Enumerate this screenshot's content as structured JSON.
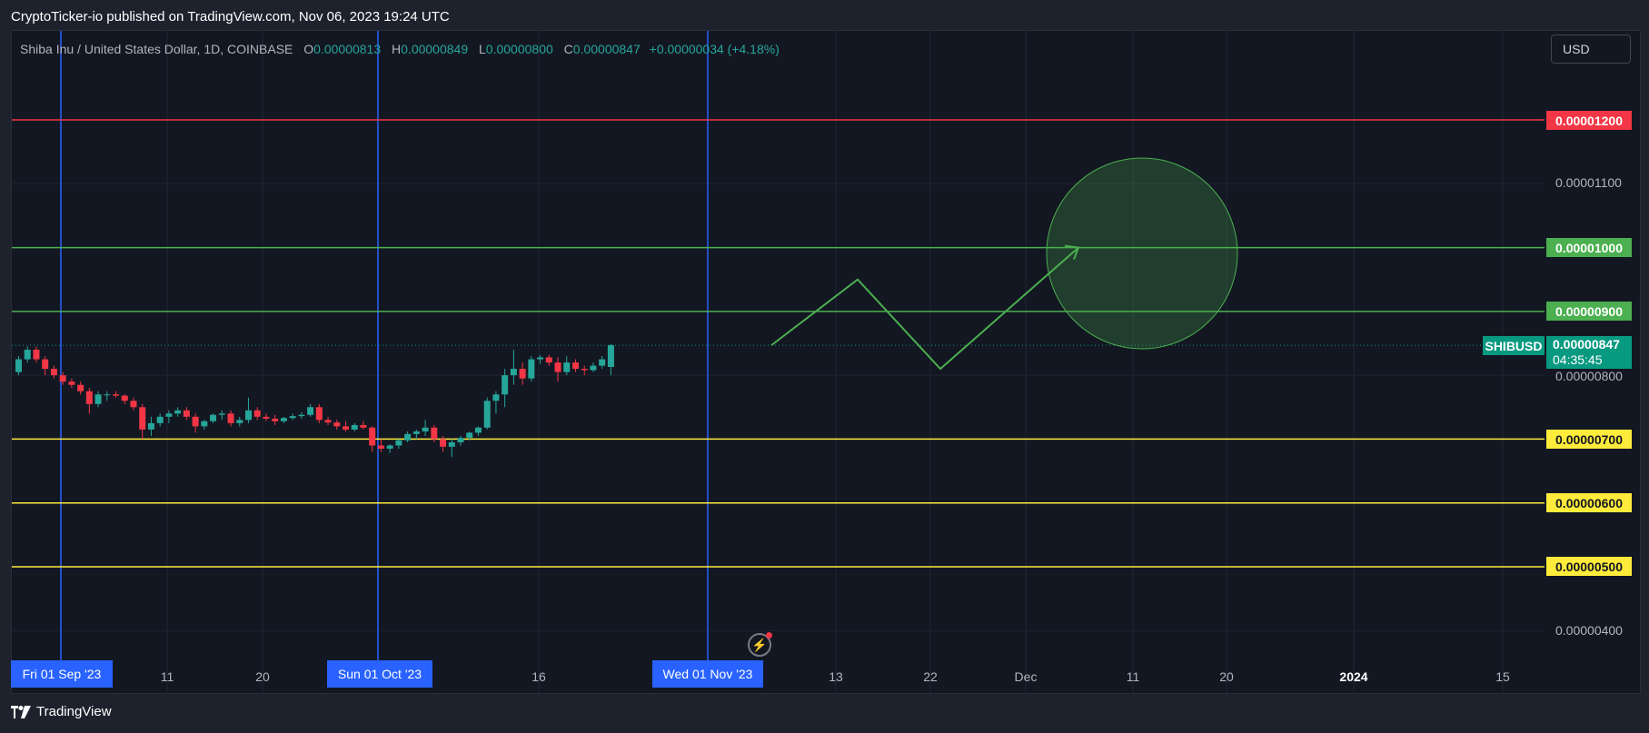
{
  "header": {
    "published_text": "CryptoTicker-io published on TradingView.com, Nov 06, 2023 19:24 UTC"
  },
  "legend": {
    "symbol_text": "Shiba Inu / United States Dollar, 1D, COINBASE",
    "open_key": "O",
    "open_value": "0.00000813",
    "high_key": "H",
    "high_value": "0.00000849",
    "low_key": "L",
    "low_value": "0.00000800",
    "close_key": "C",
    "close_value": "0.00000847",
    "change_value": "+0.00000034 (+4.18%)"
  },
  "currency_button": {
    "label": "USD"
  },
  "price_axis": {
    "plain_labels": [
      "0.00001100",
      "0.00000800",
      "0.00000400"
    ],
    "colored_tags": [
      {
        "label": "0.00001200",
        "color": "#f23645",
        "text_color": "#ffffff"
      },
      {
        "label": "0.00001000",
        "color": "#4caf50",
        "text_color": "#ffffff"
      },
      {
        "label": "0.00000900",
        "color": "#4caf50",
        "text_color": "#ffffff"
      },
      {
        "label": "0.00000700",
        "color": "#ffeb3b",
        "text_color": "#131722"
      },
      {
        "label": "0.00000600",
        "color": "#ffeb3b",
        "text_color": "#131722"
      },
      {
        "label": "0.00000500",
        "color": "#ffeb3b",
        "text_color": "#131722"
      }
    ],
    "symbol_tag": "SHIBUSD",
    "last_price": "0.00000847",
    "countdown": "04:35:45"
  },
  "time_axis": {
    "labels": [
      "11",
      "20",
      "16",
      "13",
      "22",
      "Dec",
      "11",
      "20",
      "2024",
      "15"
    ],
    "date_badges": [
      "Fri 01 Sep '23",
      "Sun 01 Oct '23",
      "Wed 01 Nov '23"
    ]
  },
  "footer": {
    "brand": "TradingView"
  },
  "colors": {
    "background": "#131722",
    "up_candle": "#26a69a",
    "down_candle": "#f23645",
    "vertical_marker": "#2962ff",
    "projection": "#4caf50"
  },
  "chart_data": {
    "type": "candlestick",
    "title": "Shiba Inu / United States Dollar, 1D, COINBASE",
    "ylim": [
      3.5e-06,
      1.3e-05
    ],
    "price_levels": [
      1.2e-05,
      1e-05,
      9e-06,
      7e-06,
      6e-06,
      5e-06
    ],
    "candles": [
      [
        8.05e-06,
        8.3e-06,
        8e-06,
        8.25e-06
      ],
      [
        8.25e-06,
        8.45e-06,
        8.2e-06,
        8.4e-06
      ],
      [
        8.4e-06,
        8.45e-06,
        8.2e-06,
        8.25e-06
      ],
      [
        8.25e-06,
        8.3e-06,
        8e-06,
        8.1e-06
      ],
      [
        8.1e-06,
        8.15e-06,
        7.95e-06,
        8e-06
      ],
      [
        8e-06,
        8.05e-06,
        7.85e-06,
        7.9e-06
      ],
      [
        7.9e-06,
        7.95e-06,
        7.8e-06,
        7.85e-06
      ],
      [
        7.85e-06,
        7.9e-06,
        7.7e-06,
        7.75e-06
      ],
      [
        7.75e-06,
        7.8e-06,
        7.4e-06,
        7.55e-06
      ],
      [
        7.55e-06,
        7.75e-06,
        7.5e-06,
        7.7e-06
      ],
      [
        7.7e-06,
        7.75e-06,
        7.6e-06,
        7.7e-06
      ],
      [
        7.7e-06,
        7.75e-06,
        7.65e-06,
        7.68e-06
      ],
      [
        7.68e-06,
        7.7e-06,
        7.55e-06,
        7.6e-06
      ],
      [
        7.6e-06,
        7.65e-06,
        7.45e-06,
        7.5e-06
      ],
      [
        7.5e-06,
        7.55e-06,
        7e-06,
        7.15e-06
      ],
      [
        7.15e-06,
        7.35e-06,
        7.05e-06,
        7.25e-06
      ],
      [
        7.25e-06,
        7.4e-06,
        7.2e-06,
        7.35e-06
      ],
      [
        7.35e-06,
        7.45e-06,
        7.25e-06,
        7.4e-06
      ],
      [
        7.4e-06,
        7.5e-06,
        7.35e-06,
        7.45e-06
      ],
      [
        7.45e-06,
        7.5e-06,
        7.3e-06,
        7.35e-06
      ],
      [
        7.35e-06,
        7.4e-06,
        7.1e-06,
        7.2e-06
      ],
      [
        7.2e-06,
        7.3e-06,
        7.15e-06,
        7.28e-06
      ],
      [
        7.28e-06,
        7.4e-06,
        7.25e-06,
        7.38e-06
      ],
      [
        7.38e-06,
        7.45e-06,
        7.3e-06,
        7.4e-06
      ],
      [
        7.4e-06,
        7.45e-06,
        7.2e-06,
        7.25e-06
      ],
      [
        7.25e-06,
        7.35e-06,
        7.2e-06,
        7.3e-06
      ],
      [
        7.3e-06,
        7.65e-06,
        7.25e-06,
        7.45e-06
      ],
      [
        7.45e-06,
        7.5e-06,
        7.3e-06,
        7.35e-06
      ],
      [
        7.35e-06,
        7.4e-06,
        7.28e-06,
        7.32e-06
      ],
      [
        7.32e-06,
        7.38e-06,
        7.22e-06,
        7.28e-06
      ],
      [
        7.28e-06,
        7.35e-06,
        7.25e-06,
        7.33e-06
      ],
      [
        7.33e-06,
        7.4e-06,
        7.3e-06,
        7.36e-06
      ],
      [
        7.36e-06,
        7.42e-06,
        7.32e-06,
        7.38e-06
      ],
      [
        7.38e-06,
        7.55e-06,
        7.35e-06,
        7.5e-06
      ],
      [
        7.5e-06,
        7.55e-06,
        7.25e-06,
        7.3e-06
      ],
      [
        7.3e-06,
        7.35e-06,
        7.22e-06,
        7.26e-06
      ],
      [
        7.26e-06,
        7.3e-06,
        7.15e-06,
        7.2e-06
      ],
      [
        7.2e-06,
        7.28e-06,
        7.12e-06,
        7.15e-06
      ],
      [
        7.15e-06,
        7.25e-06,
        7.12e-06,
        7.22e-06
      ],
      [
        7.22e-06,
        7.28e-06,
        7.15e-06,
        7.18e-06
      ],
      [
        7.18e-06,
        7.2e-06,
        6.8e-06,
        6.9e-06
      ],
      [
        6.9e-06,
        7e-06,
        6.8e-06,
        6.85e-06
      ],
      [
        6.85e-06,
        6.92e-06,
        6.78e-06,
        6.9e-06
      ],
      [
        6.9e-06,
        7e-06,
        6.85e-06,
        6.98e-06
      ],
      [
        6.98e-06,
        7.12e-06,
        6.95e-06,
        7.08e-06
      ],
      [
        7.08e-06,
        7.15e-06,
        7e-06,
        7.12e-06
      ],
      [
        7.12e-06,
        7.3e-06,
        7.05e-06,
        7.18e-06
      ],
      [
        7.18e-06,
        7.22e-06,
        6.95e-06,
        7e-06
      ],
      [
        7e-06,
        7.05e-06,
        6.8e-06,
        6.88e-06
      ],
      [
        6.88e-06,
        7e-06,
        6.72e-06,
        6.95e-06
      ],
      [
        6.95e-06,
        7.05e-06,
        6.9e-06,
        7.02e-06
      ],
      [
        7.02e-06,
        7.12e-06,
        6.98e-06,
        7.1e-06
      ],
      [
        7.1e-06,
        7.2e-06,
        7.05e-06,
        7.18e-06
      ],
      [
        7.18e-06,
        7.65e-06,
        7.15e-06,
        7.6e-06
      ],
      [
        7.6e-06,
        7.75e-06,
        7.4e-06,
        7.7e-06
      ],
      [
        7.7e-06,
        8.1e-06,
        7.5e-06,
        8e-06
      ],
      [
        8e-06,
        8.4e-06,
        7.85e-06,
        8.1e-06
      ],
      [
        8.1e-06,
        8.2e-06,
        7.85e-06,
        7.95e-06
      ],
      [
        7.95e-06,
        8.3e-06,
        7.9e-06,
        8.25e-06
      ],
      [
        8.25e-06,
        8.32e-06,
        8.18e-06,
        8.28e-06
      ],
      [
        8.28e-06,
        8.32e-06,
        8.15e-06,
        8.2e-06
      ],
      [
        8.2e-06,
        8.28e-06,
        7.9e-06,
        8.05e-06
      ],
      [
        8.05e-06,
        8.3e-06,
        8e-06,
        8.2e-06
      ],
      [
        8.2e-06,
        8.25e-06,
        8.05e-06,
        8.1e-06
      ],
      [
        8.1e-06,
        8.15e-06,
        8e-06,
        8.08e-06
      ],
      [
        8.08e-06,
        8.2e-06,
        8.05e-06,
        8.15e-06
      ],
      [
        8.15e-06,
        8.3e-06,
        8.1e-06,
        8.25e-06
      ],
      [
        8.13e-06,
        8.49e-06,
        8e-06,
        8.47e-06
      ]
    ],
    "projection_path_prices": [
      8.47e-06,
      9.5e-06,
      8.1e-06,
      1e-05
    ]
  }
}
